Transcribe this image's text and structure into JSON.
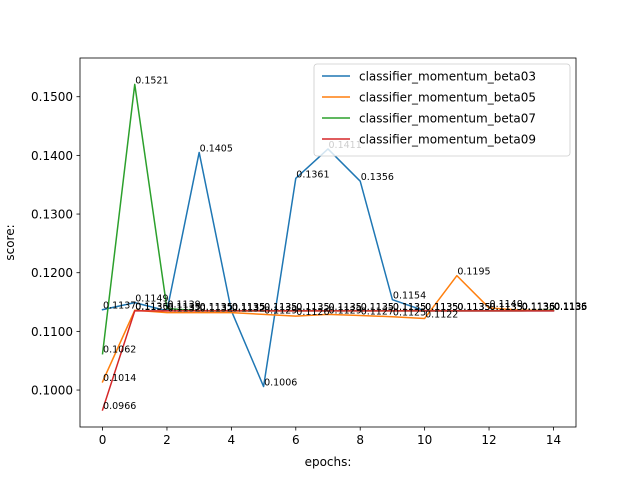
{
  "chart_data": {
    "type": "line",
    "title": "",
    "xlabel": "epochs:",
    "ylabel": "score:",
    "xlim": [
      -0.7,
      14.7
    ],
    "ylim": [
      0.0937,
      0.1566
    ],
    "x_ticks": [
      0,
      2,
      4,
      6,
      8,
      10,
      12,
      14
    ],
    "x_tick_labels": [
      "0",
      "2",
      "4",
      "6",
      "8",
      "10",
      "12",
      "14"
    ],
    "y_ticks": [
      0.1,
      0.11,
      0.12,
      0.13,
      0.14,
      0.15
    ],
    "y_tick_labels": [
      "0.1000",
      "0.1100",
      "0.1200",
      "0.1300",
      "0.1400",
      "0.1500"
    ],
    "grid": false,
    "legend_position": "upper-right",
    "x": [
      0,
      1,
      2,
      3,
      4,
      5,
      6,
      7,
      8,
      9,
      10,
      11,
      12,
      13,
      14
    ],
    "series": [
      {
        "name": "classifier_momentum_beta03",
        "color": "#1f77b4",
        "values": [
          0.1137,
          0.1149,
          0.1135,
          0.1405,
          0.1135,
          0.1006,
          0.1361,
          0.1411,
          0.1356,
          0.1154,
          0.1135,
          0.1135,
          0.1135,
          0.1135,
          0.1135
        ],
        "labels": [
          "0.1137",
          "0.1149",
          "0.1135",
          "0.1405",
          "0.1135",
          "0.1006",
          "0.1361",
          "0.1411",
          "0.1356",
          "0.1154",
          "0.1135",
          "0.1135",
          "0.1135",
          "0.1135",
          "0.1135"
        ]
      },
      {
        "name": "classifier_momentum_beta05",
        "color": "#ff7f0e",
        "values": [
          0.1014,
          0.1136,
          0.1132,
          0.1132,
          0.1132,
          0.1129,
          0.1126,
          0.1129,
          0.1127,
          0.1125,
          0.1122,
          0.1195,
          0.114,
          0.1136,
          0.1136
        ],
        "labels": [
          "0.1014",
          "0.1136",
          "0.1132",
          "0.1132",
          "0.1132",
          "0.1129",
          "0.1126",
          "0.1129",
          "0.1127",
          "0.1125",
          "0.1122",
          "0.1195",
          "0.1140",
          "0.1136",
          "0.1136"
        ]
      },
      {
        "name": "classifier_momentum_beta07",
        "color": "#2ca02c",
        "values": [
          0.1062,
          0.1521,
          0.1139,
          0.1135,
          0.1135,
          0.1135,
          0.1135,
          0.1135,
          0.1135,
          0.1135,
          0.1135,
          0.1135,
          0.1135,
          0.1135,
          0.1136
        ],
        "labels": [
          "0.1062",
          "0.1521",
          "0.1139",
          "0.1135",
          "0.1135",
          "0.1135",
          "0.1135",
          "0.1135",
          "0.1135",
          "0.1135",
          "0.1135",
          "0.1135",
          "0.1135",
          "0.1135",
          "0.1136"
        ]
      },
      {
        "name": "classifier_momentum_beta09",
        "color": "#d62728",
        "values": [
          0.0966,
          0.1135,
          0.1135,
          0.1135,
          0.1135,
          0.1135,
          0.1135,
          0.1135,
          0.1135,
          0.1135,
          0.1135,
          0.1135,
          0.1135,
          0.1135,
          0.1135
        ],
        "labels": [
          "0.0966",
          "0.1135",
          "0.1135",
          "0.1135",
          "0.1135",
          "0.1135",
          "0.1135",
          "0.1135",
          "0.1135",
          "0.1135",
          "0.1135",
          "0.1135",
          "0.1135",
          "0.1135",
          "0.1135"
        ]
      }
    ]
  }
}
